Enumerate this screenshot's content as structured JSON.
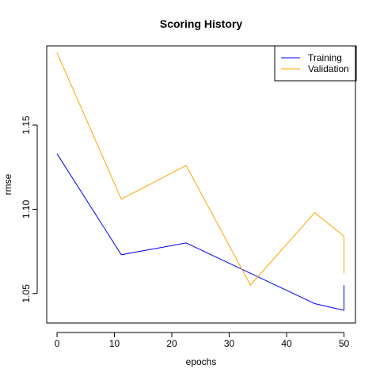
{
  "chart_data": {
    "type": "line",
    "title": "Scoring History",
    "xlabel": "epochs",
    "ylabel": "rmse",
    "xlim": [
      -1.8,
      52
    ],
    "ylim": [
      1.0325,
      1.197
    ],
    "x_ticks": [
      0,
      10,
      20,
      30,
      40,
      50
    ],
    "y_ticks": [
      1.05,
      1.1,
      1.15
    ],
    "y_tick_labels": [
      "1.05",
      "1.10",
      "1.15"
    ],
    "legend_position": "top-right",
    "series": [
      {
        "name": "Training",
        "color": "#0000ff",
        "x": [
          0,
          11.2,
          22.5,
          33.7,
          44.9,
          50,
          50
        ],
        "y": [
          1.133,
          1.073,
          1.08,
          1.062,
          1.044,
          1.04,
          1.055
        ]
      },
      {
        "name": "Validation",
        "color": "#ffa500",
        "x": [
          0,
          11.2,
          22.5,
          33.7,
          44.9,
          50,
          50
        ],
        "y": [
          1.193,
          1.106,
          1.126,
          1.055,
          1.098,
          1.084,
          1.062
        ]
      }
    ]
  }
}
